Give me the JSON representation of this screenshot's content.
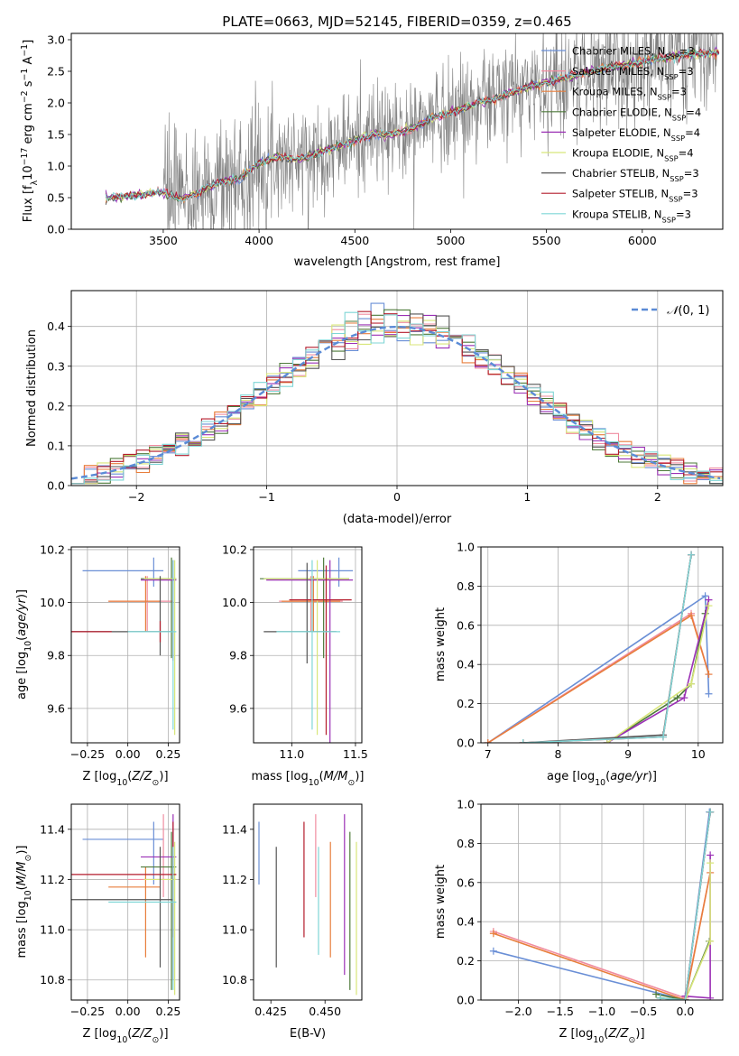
{
  "colors": {
    "chabrier_miles": "#6a8fd6",
    "salpeter_miles": "#f08ca0",
    "kroupa_miles": "#e87e3c",
    "chabrier_elodie": "#4e7a3a",
    "salpeter_elodie": "#9b30b5",
    "kroupa_elodie": "#d8e67a",
    "chabrier_stelib": "#555555",
    "salpeter_stelib": "#b41c2c",
    "kroupa_stelib": "#7fd6d6",
    "data": "#808080"
  },
  "chart_data": [
    {
      "id": "spectrum",
      "type": "line",
      "title": "PLATE=0663, MJD=52145, FIBERID=0359, z=0.465",
      "xlabel": "wavelength [Angstrom, rest frame]",
      "ylabel": "Flux [f$_\\lambda$10$^{-17}$ erg cm$^{-2}$ s$^{-1}$ A$^{-1}$]",
      "xlim": [
        3020,
        6420
      ],
      "ylim": [
        0,
        3.1
      ],
      "xticks": [
        "3500",
        "4000",
        "4500",
        "5000",
        "5500",
        "6000"
      ],
      "yticks": [
        "0.0",
        "0.5",
        "1.0",
        "1.5",
        "2.0",
        "2.5",
        "3.0"
      ],
      "legend": "upper right",
      "legend_entries": [
        "Chabrier MILES, N$_{SSP}$=3",
        "Salpeter MILES, N$_{SSP}$=3",
        "Kroupa MILES, N$_{SSP}$=3",
        "Chabrier ELODIE, N$_{SSP}$=4",
        "Salpeter ELODIE, N$_{SSP}$=4",
        "Kroupa ELODIE, N$_{SSP}$=4",
        "Chabrier STELIB, N$_{SSP}$=3",
        "Salpeter STELIB, N$_{SSP}$=3",
        "Kroupa STELIB, N$_{SSP}$=3"
      ],
      "continuum": {
        "x": [
          3200,
          3300,
          3400,
          3500,
          3600,
          3700,
          3800,
          3900,
          4000,
          4100,
          4200,
          4300,
          4400,
          4500,
          4600,
          4700,
          4800,
          4900,
          5000,
          5200,
          5400,
          5600,
          5800,
          6000,
          6200,
          6400
        ],
        "y": [
          0.5,
          0.52,
          0.55,
          0.6,
          0.52,
          0.62,
          0.75,
          0.8,
          1.05,
          1.15,
          1.1,
          1.2,
          1.3,
          1.4,
          1.5,
          1.5,
          1.6,
          1.75,
          1.85,
          2.05,
          2.25,
          2.4,
          2.55,
          2.65,
          2.75,
          2.8
        ]
      }
    },
    {
      "id": "residuals",
      "type": "bar",
      "xlabel": "(data-model)/error",
      "ylabel": "Normed distribution",
      "xlim": [
        -2.5,
        2.5
      ],
      "ylim": [
        0,
        0.49
      ],
      "xticks": [
        "−2",
        "−1",
        "0",
        "1",
        "2"
      ],
      "yticks": [
        "0.0",
        "0.1",
        "0.2",
        "0.3",
        "0.4"
      ],
      "legend": "upper right",
      "legend_entries": [
        "$\\mathcal{N}(0,1)$"
      ],
      "grid": true
    },
    {
      "id": "age_vs_Z",
      "type": "scatter",
      "xlabel": "Z [log$_{10}$($Z/Z_\\odot$)]",
      "ylabel": "age  [log$_{10}$($age/yr$)]",
      "xlim": [
        -0.35,
        0.32
      ],
      "ylim": [
        9.47,
        10.21
      ],
      "xticks": [
        "−0.25",
        "0.00",
        "0.25"
      ],
      "yticks": [
        "9.6",
        "9.8",
        "10.0",
        "10.2"
      ]
    },
    {
      "id": "age_vs_mass",
      "type": "scatter",
      "xlabel": "mass [log$_{10}$($M/M_\\odot$)]",
      "xlim": [
        10.7,
        11.55
      ],
      "ylim": [
        9.47,
        10.21
      ],
      "xticks": [
        "11.0",
        "11.5"
      ],
      "yticks": [
        "9.6",
        "9.8",
        "10.0",
        "10.2"
      ]
    },
    {
      "id": "weight_vs_age",
      "type": "line",
      "xlabel": "age  [log$_{10}$($age/yr$)]",
      "ylabel": "mass weight",
      "xlim": [
        6.9,
        10.35
      ],
      "ylim": [
        0,
        1.0
      ],
      "xticks": [
        "7",
        "8",
        "9",
        "10"
      ],
      "yticks": [
        "0.0",
        "0.2",
        "0.4",
        "0.6",
        "0.8",
        "1.0"
      ]
    },
    {
      "id": "mass_vs_Z",
      "type": "scatter",
      "xlabel": "Z [log$_{10}$($Z/Z_\\odot$)]",
      "ylabel": "mass [log$_{10}$($M/M_\\odot$)]",
      "xlim": [
        -0.35,
        0.32
      ],
      "ylim": [
        10.72,
        11.5
      ],
      "xticks": [
        "−0.25",
        "0.00",
        "0.25"
      ],
      "yticks": [
        "10.8",
        "11.0",
        "11.2",
        "11.4"
      ]
    },
    {
      "id": "mass_vs_ebv",
      "type": "scatter",
      "xlabel": "E(B-V)",
      "xlim": [
        0.417,
        0.467
      ],
      "ylim": [
        10.72,
        11.5
      ],
      "xticks": [
        "0.425",
        "0.450"
      ],
      "yticks": [
        "10.8",
        "11.0",
        "11.2",
        "11.4"
      ]
    },
    {
      "id": "weight_vs_Z",
      "type": "line",
      "xlabel": "Z [log$_{10}$($Z/Z_\\odot$)]",
      "ylabel": "mass weight",
      "xlim": [
        -2.45,
        0.45
      ],
      "ylim": [
        0,
        1.0
      ],
      "xticks": [
        "−2.0",
        "−1.5",
        "−1.0",
        "−0.5",
        "0.0"
      ],
      "yticks": [
        "0.0",
        "0.2",
        "0.4",
        "0.6",
        "0.8",
        "1.0"
      ]
    }
  ]
}
